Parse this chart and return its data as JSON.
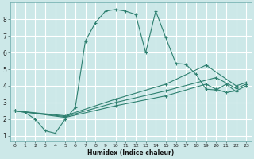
{
  "xlabel": "Humidex (Indice chaleur)",
  "bg_color": "#cce8e8",
  "grid_color": "#ffffff",
  "line_color": "#2e8070",
  "xlim": [
    -0.5,
    23.5
  ],
  "ylim": [
    0.7,
    9.0
  ],
  "xticks": [
    0,
    1,
    2,
    3,
    4,
    5,
    6,
    7,
    8,
    9,
    10,
    11,
    12,
    13,
    14,
    15,
    16,
    17,
    18,
    19,
    20,
    21,
    22,
    23
  ],
  "yticks": [
    1,
    2,
    3,
    4,
    5,
    6,
    7,
    8
  ],
  "line1_x": [
    0,
    1,
    2,
    3,
    4,
    5,
    6,
    7,
    8,
    9,
    10,
    11,
    12,
    13,
    14,
    15,
    16,
    17,
    18,
    19,
    20,
    21,
    22
  ],
  "line1_y": [
    2.5,
    2.4,
    2.0,
    1.3,
    1.15,
    2.0,
    2.7,
    6.7,
    7.8,
    8.5,
    8.6,
    8.5,
    8.3,
    6.0,
    8.5,
    6.9,
    5.35,
    5.3,
    4.7,
    3.8,
    3.75,
    4.1,
    3.65
  ],
  "line2_x": [
    0,
    5,
    10,
    15,
    19,
    20,
    21,
    22,
    23
  ],
  "line2_y": [
    2.5,
    2.1,
    2.8,
    3.4,
    4.1,
    3.8,
    3.6,
    3.7,
    4.0
  ],
  "line3_x": [
    0,
    5,
    10,
    15,
    20,
    22,
    23
  ],
  "line3_y": [
    2.5,
    2.15,
    3.0,
    3.7,
    4.5,
    3.85,
    4.1
  ],
  "line4_x": [
    0,
    5,
    10,
    15,
    19,
    22,
    23
  ],
  "line4_y": [
    2.5,
    2.2,
    3.2,
    4.1,
    5.25,
    4.0,
    4.2
  ]
}
